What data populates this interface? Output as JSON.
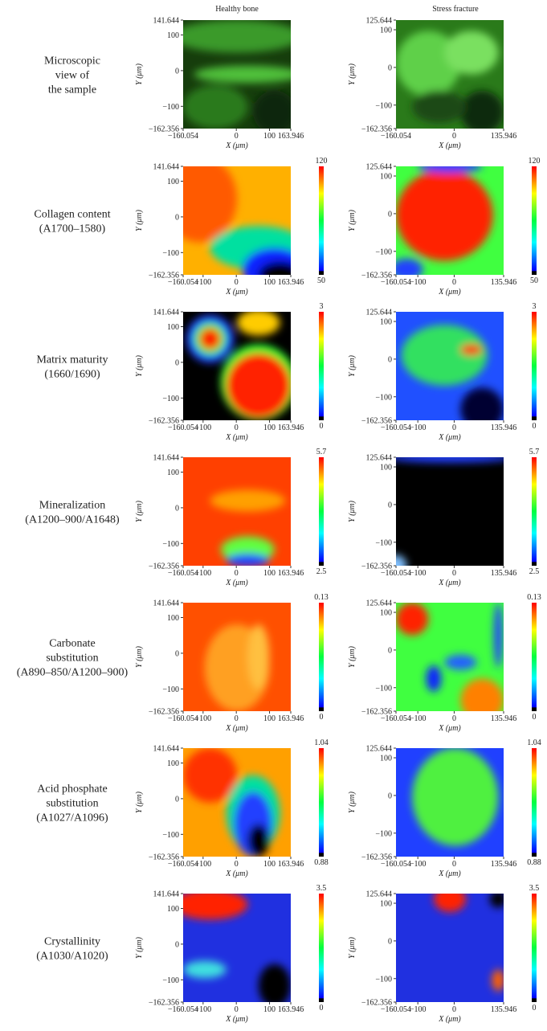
{
  "columns": [
    "Healthy bone",
    "Stress fracture"
  ],
  "x_label": "X (μm)",
  "y_label": "Y (μm)",
  "first_row_axes": [
    {
      "xlim": [
        -160.054,
        163.946
      ],
      "ylim": [
        -162.356,
        141.644
      ],
      "xticks": [
        {
          "value": -160.054,
          "label": "−160.054"
        },
        0,
        100,
        163.946
      ],
      "yticks": [
        141.644,
        100,
        0,
        {
          "value": -100,
          "label": "−100"
        },
        {
          "value": -162.356,
          "label": "−162.356"
        }
      ]
    },
    {
      "xlim": [
        -160.054,
        135.946
      ],
      "ylim": [
        -162.356,
        125.644
      ],
      "xticks": [
        {
          "value": -160.054,
          "label": "−160.054"
        },
        0,
        135.946
      ],
      "yticks": [
        125.644,
        100,
        0,
        {
          "value": -100,
          "label": "−100"
        },
        {
          "value": -162.356,
          "label": "−162.356"
        }
      ]
    }
  ],
  "axes": [
    {
      "xlim": [
        -160.054,
        163.946
      ],
      "ylim": [
        -162.356,
        141.644
      ],
      "xticks": [
        {
          "value": -160.054,
          "label": "−160.054"
        },
        {
          "value": -100,
          "label": "−100"
        },
        0,
        100,
        163.946
      ],
      "yticks": [
        141.644,
        100,
        0,
        {
          "value": -100,
          "label": "−100"
        },
        {
          "value": -162.356,
          "label": "−162.356"
        }
      ]
    },
    {
      "xlim": [
        -160.054,
        135.946
      ],
      "ylim": [
        -162.356,
        125.644
      ],
      "xticks": [
        {
          "value": -160.054,
          "label": "−160.054"
        },
        {
          "value": -100,
          "label": "−100"
        },
        0,
        135.946
      ],
      "yticks": [
        125.644,
        100,
        0,
        {
          "value": -100,
          "label": "−100"
        },
        {
          "value": -162.356,
          "label": "−162.356"
        }
      ]
    }
  ],
  "rows": [
    {
      "label": [
        "Microscopic",
        "view of",
        "the sample"
      ]
    },
    {
      "label": [
        "Collagen content",
        "(A1700–1580)"
      ],
      "scale": {
        "max": 120,
        "min": 50
      }
    },
    {
      "label": [
        "Matrix maturity",
        "(1660/1690)"
      ],
      "scale": {
        "max": 3,
        "min": 0
      }
    },
    {
      "label": [
        "Mineralization",
        "(A1200–900/A1648)"
      ],
      "scale": {
        "max": 5.7,
        "min": 2.5
      }
    },
    {
      "label": [
        "Carbonate",
        "substitution",
        "(A890–850/A1200–900)"
      ],
      "scale": {
        "max": 0.13,
        "min": 0
      }
    },
    {
      "label": [
        "Acid phosphate",
        "substitution",
        "(A1027/A1096)"
      ],
      "scale": {
        "max": 1.04,
        "min": 0.88
      }
    },
    {
      "label": [
        "Crystallinity",
        "(A1030/A1020)"
      ],
      "scale": {
        "max": 3.5,
        "min": 0
      }
    }
  ]
}
